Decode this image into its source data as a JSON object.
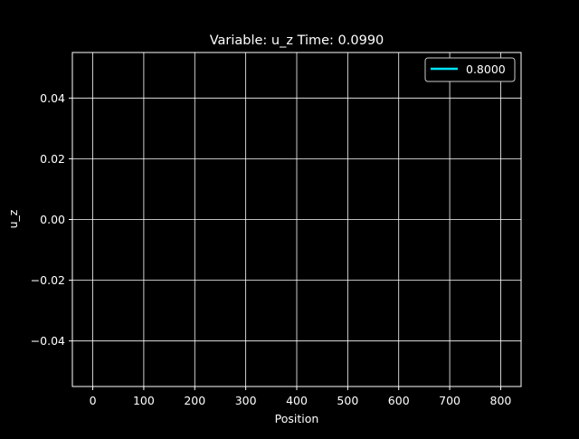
{
  "chart_data": {
    "type": "line",
    "title": "Variable: u_z Time: 0.0990",
    "xlabel": "Position",
    "ylabel": "u_z",
    "xlim": [
      -40,
      840
    ],
    "ylim": [
      -0.055,
      0.055
    ],
    "x_ticks": [
      0,
      100,
      200,
      300,
      400,
      500,
      600,
      700,
      800
    ],
    "x_tick_labels": [
      "0",
      "100",
      "200",
      "300",
      "400",
      "500",
      "600",
      "700",
      "800"
    ],
    "y_ticks": [
      -0.04,
      -0.02,
      0.0,
      0.02,
      0.04
    ],
    "y_tick_labels": [
      "−0.04",
      "−0.02",
      "0.00",
      "0.02",
      "0.04"
    ],
    "grid": true,
    "legend_position": "upper right",
    "background_color": "#000000",
    "foreground_color": "#ffffff",
    "series": [
      {
        "name": "0.8000",
        "color": "#00e5ff",
        "x": [],
        "y": []
      }
    ]
  }
}
